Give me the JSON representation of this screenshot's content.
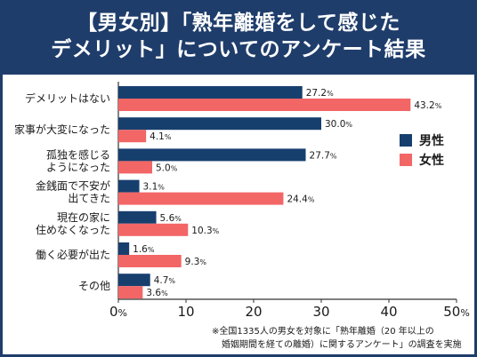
{
  "header": {
    "line1": "【男女別】「熟年離婚をして感じた",
    "line2": "デメリット」についてのアンケート結果"
  },
  "note": {
    "line1": "※全国1335人の男女を対象に「熟年離婚（20 年以上の",
    "line2": "婚姻期間を経ての離婚）に関するアンケート」の調査を実施"
  },
  "colors": {
    "header_bg": "#1f3d6b",
    "male": "#173f6e",
    "female": "#f26666"
  },
  "chart_data": {
    "type": "bar",
    "orientation": "horizontal",
    "title": "【男女別】「熟年離婚をして感じたデメリット」についてのアンケート結果",
    "xlabel": "",
    "ylabel": "",
    "categories": [
      [
        "デメリットはない"
      ],
      [
        "家事が大変になった"
      ],
      [
        "孤独を感じる",
        "ようになった"
      ],
      [
        "金銭面で不安が",
        "出てきた"
      ],
      [
        "現在の家に",
        "住めなくなった"
      ],
      [
        "働く必要が出た"
      ],
      [
        "その他"
      ]
    ],
    "series": [
      {
        "name": "男性",
        "values": [
          27.2,
          30.0,
          27.7,
          3.1,
          5.6,
          1.6,
          4.7
        ]
      },
      {
        "name": "女性",
        "values": [
          43.2,
          4.1,
          5.0,
          24.4,
          10.3,
          9.3,
          3.6
        ]
      }
    ],
    "value_labels": [
      [
        "27.2",
        "30.0",
        "27.7",
        "3.1",
        "5.6",
        "1.6",
        "4.7"
      ],
      [
        "43.2",
        "4.1",
        "5.0",
        "24.4",
        "10.3",
        "9.3",
        "3.6"
      ]
    ],
    "unit": "%",
    "xlim": [
      0,
      50
    ],
    "xticks": [
      "0",
      "10",
      "20",
      "30",
      "40",
      "50"
    ],
    "legend_position": "right",
    "grid": false
  }
}
